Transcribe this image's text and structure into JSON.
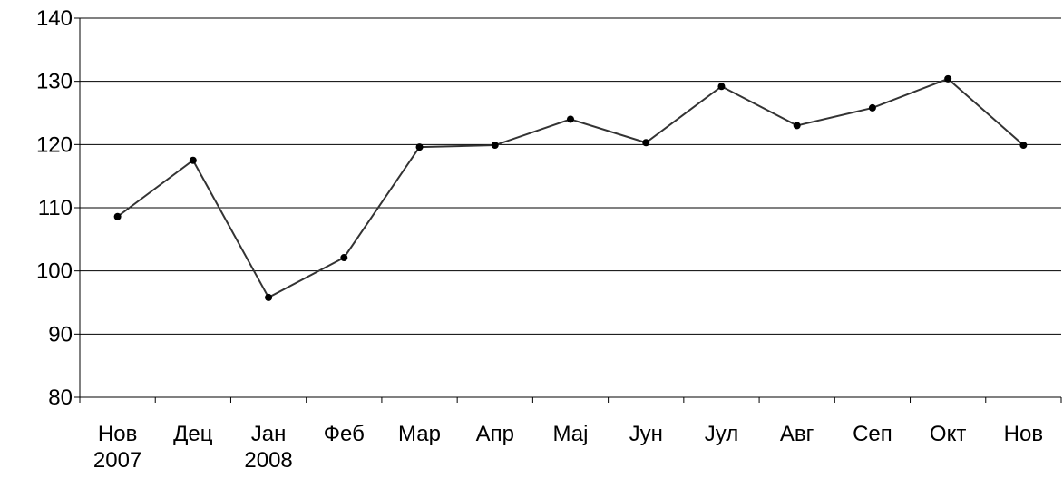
{
  "chart_data": {
    "type": "line",
    "categories": [
      "Нов\n2007",
      "Дец",
      "Јан\n2008",
      "Феб",
      "Мар",
      "Апр",
      "Мај",
      "Јун",
      "Јул",
      "Авг",
      "Сеп",
      "Окт",
      "Нов"
    ],
    "series": [
      {
        "color": "#333333",
        "values": [
          108.6,
          117.5,
          95.8,
          102.1,
          119.6,
          119.9,
          124.0,
          120.3,
          129.2,
          123.0,
          125.8,
          130.4,
          119.9
        ]
      }
    ],
    "ylim": [
      80,
      140
    ],
    "yticks": [
      80,
      90,
      100,
      110,
      120,
      130,
      140
    ],
    "grid": true
  }
}
